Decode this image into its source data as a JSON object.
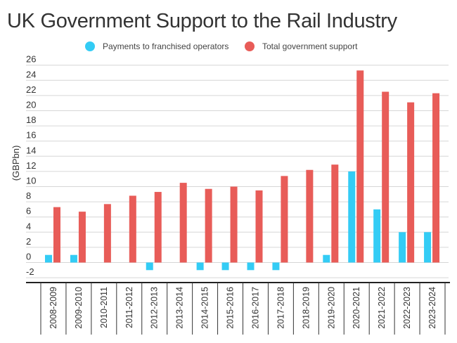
{
  "chart_data": {
    "type": "bar",
    "title": "UK Government Support to the Rail Industry",
    "xlabel": "",
    "ylabel": "(GBPbn)",
    "ylim": [
      -2,
      26
    ],
    "yticks": [
      -2,
      0,
      2,
      4,
      6,
      8,
      10,
      12,
      14,
      16,
      18,
      20,
      22,
      24,
      26
    ],
    "grid": true,
    "legend_position": "top",
    "categories": [
      "2008-2009",
      "2009-2010",
      "2010-2011",
      "2011-2012",
      "2012-2013",
      "2013-2014",
      "2014-2015",
      "2015-2016",
      "2016-2017",
      "2017-2018",
      "2018-2019",
      "2019-2020",
      "2020-2021",
      "2021-2022",
      "2022-2023",
      "2023-2024"
    ],
    "series": [
      {
        "name": "Payments to franchised operators",
        "color": "#33ccf5",
        "values": [
          1,
          1,
          0,
          0,
          -1,
          0,
          -1,
          -1,
          -1,
          -1,
          0,
          1,
          12,
          7,
          4,
          4
        ]
      },
      {
        "name": "Total government support",
        "color": "#e85c58",
        "values": [
          7.3,
          6.7,
          7.7,
          8.8,
          9.3,
          10.5,
          9.7,
          10.0,
          9.5,
          11.4,
          12.2,
          12.9,
          25.3,
          22.5,
          21.1,
          22.3
        ]
      }
    ]
  }
}
